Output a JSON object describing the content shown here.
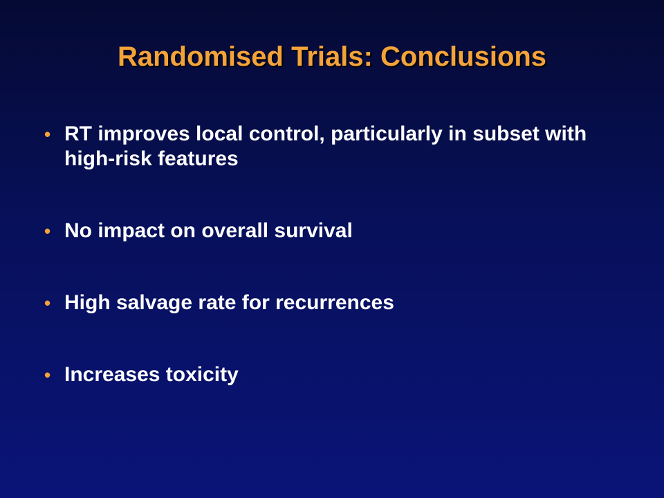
{
  "slide": {
    "title": "Randomised Trials: Conclusions",
    "bullet_marker": "•",
    "bullets": [
      {
        "text": "RT improves local control, particularly in subset with high-risk features"
      },
      {
        "text": "No impact on overall survival"
      },
      {
        "text": "High salvage rate for recurrences"
      },
      {
        "text": "Increases toxicity"
      }
    ]
  },
  "colors": {
    "title": "#f4a33a",
    "bullet_marker": "#f4a33a",
    "text": "#ffffff",
    "background": "#07105a"
  }
}
